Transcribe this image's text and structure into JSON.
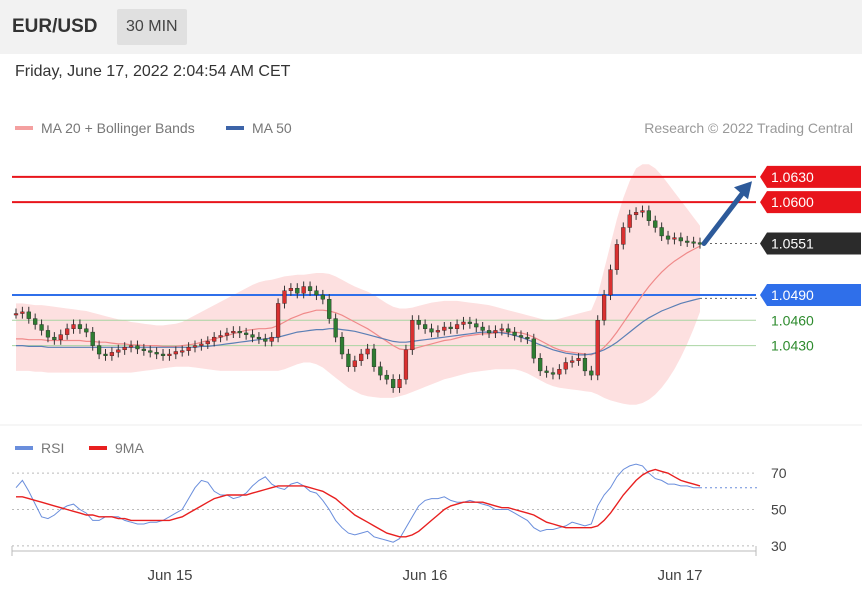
{
  "header": {
    "pair": "EUR/USD",
    "timeframe": "30 MIN"
  },
  "datetime": "Friday, June 17, 2022 2:04:54 AM CET",
  "credit": "Research © 2022 Trading Central",
  "legend": {
    "ma20": "MA 20 + Bollinger Bands",
    "ma50": "MA 50",
    "rsi": "RSI",
    "ma9": "9MA"
  },
  "colors": {
    "resistance": "#e8141b",
    "support_blue": "#2f6fea",
    "support_green": "#a9d4a2",
    "band_fill": "#fde0e0",
    "ma20": "#f08a8a",
    "ma50": "#5b7fb5",
    "arrow": "#2d5a9a",
    "candle_up": "#d93030",
    "candle_down": "#2e7d32",
    "rsi": "#6a8edc",
    "ma9": "#e82020"
  },
  "chart_data": [
    {
      "type": "candlestick",
      "x_ticks": [
        "Jun 15",
        "Jun 16",
        "Jun 17"
      ],
      "ylim": [
        1.0375,
        1.065
      ],
      "levels": [
        {
          "value": 1.063,
          "label": "1.0630",
          "kind": "resistance"
        },
        {
          "value": 1.06,
          "label": "1.0600",
          "kind": "resistance"
        },
        {
          "value": 1.0551,
          "label": "1.0551",
          "kind": "last"
        },
        {
          "value": 1.049,
          "label": "1.0490",
          "kind": "support"
        },
        {
          "value": 1.046,
          "label": "1.0460",
          "kind": "support_green"
        },
        {
          "value": 1.043,
          "label": "1.0430",
          "kind": "support_green"
        }
      ],
      "close_series": [
        1.0468,
        1.047,
        1.0462,
        1.0455,
        1.0448,
        1.044,
        1.0437,
        1.0443,
        1.045,
        1.0455,
        1.045,
        1.0446,
        1.043,
        1.042,
        1.0418,
        1.0422,
        1.0425,
        1.0428,
        1.043,
        1.0426,
        1.0424,
        1.0422,
        1.042,
        1.0418,
        1.042,
        1.0423,
        1.0424,
        1.0428,
        1.043,
        1.0432,
        1.0435,
        1.044,
        1.0442,
        1.0445,
        1.0447,
        1.0445,
        1.0443,
        1.044,
        1.0438,
        1.0435,
        1.044,
        1.048,
        1.0495,
        1.0498,
        1.0492,
        1.05,
        1.0495,
        1.049,
        1.0485,
        1.0462,
        1.044,
        1.042,
        1.0405,
        1.0412,
        1.042,
        1.0426,
        1.0405,
        1.0395,
        1.039,
        1.038,
        1.039,
        1.0425,
        1.046,
        1.0455,
        1.045,
        1.0446,
        1.0448,
        1.0452,
        1.045,
        1.0455,
        1.0458,
        1.0456,
        1.0452,
        1.0448,
        1.0445,
        1.0448,
        1.045,
        1.0446,
        1.0442,
        1.044,
        1.0438,
        1.0415,
        1.04,
        1.0398,
        1.0396,
        1.0402,
        1.041,
        1.0412,
        1.0415,
        1.04,
        1.0395,
        1.046,
        1.049,
        1.052,
        1.055,
        1.057,
        1.0585,
        1.0588,
        1.059,
        1.0578,
        1.057,
        1.056,
        1.0556,
        1.0558,
        1.0554,
        1.0553,
        1.0552,
        1.0551
      ],
      "ma20": [
        1.0438,
        1.0438,
        1.0437,
        1.0437,
        1.0437,
        1.0436,
        1.0436,
        1.0436,
        1.0436,
        1.0436,
        1.0436,
        1.0435,
        1.0435,
        1.0434,
        1.0434,
        1.0433,
        1.0432,
        1.0432,
        1.0431,
        1.0431,
        1.043,
        1.043,
        1.043,
        1.0429,
        1.0429,
        1.0429,
        1.043,
        1.0431,
        1.0432,
        1.0434,
        1.0436,
        1.0438,
        1.044,
        1.0442,
        1.0444,
        1.0446,
        1.0448,
        1.0449,
        1.045,
        1.045,
        1.0451,
        1.0454,
        1.0458,
        1.0462,
        1.0465,
        1.0468,
        1.047,
        1.0472,
        1.0472,
        1.0471,
        1.0469,
        1.0466,
        1.0462,
        1.0458,
        1.0454,
        1.045,
        1.0445,
        1.044,
        1.0435,
        1.043,
        1.0426,
        1.0425,
        1.0426,
        1.0428,
        1.043,
        1.0432,
        1.0434,
        1.0436,
        1.0437,
        1.0439,
        1.0441,
        1.0442,
        1.0443,
        1.0444,
        1.0444,
        1.0445,
        1.0446,
        1.0446,
        1.0446,
        1.0445,
        1.0443,
        1.044,
        1.0436,
        1.0432,
        1.0428,
        1.0425,
        1.0423,
        1.0422,
        1.0421,
        1.042,
        1.0419,
        1.0422,
        1.0428,
        1.0436,
        1.0446,
        1.0457,
        1.0468,
        1.0479,
        1.049,
        1.05,
        1.0509,
        1.0517,
        1.0524,
        1.053,
        1.0535,
        1.054,
        1.0544,
        1.0548
      ],
      "bb_upper": [
        1.048,
        1.048,
        1.0479,
        1.0478,
        1.0478,
        1.0477,
        1.0476,
        1.0475,
        1.0474,
        1.0473,
        1.0472,
        1.0471,
        1.0469,
        1.0467,
        1.0465,
        1.0463,
        1.0461,
        1.046,
        1.0458,
        1.0457,
        1.0456,
        1.0455,
        1.0454,
        1.0454,
        1.0455,
        1.0456,
        1.0458,
        1.0462,
        1.0466,
        1.047,
        1.0474,
        1.0478,
        1.0482,
        1.0486,
        1.049,
        1.0494,
        1.0498,
        1.0502,
        1.0505,
        1.0507,
        1.0508,
        1.051,
        1.0512,
        1.0513,
        1.0514,
        1.0514,
        1.0515,
        1.0516,
        1.0516,
        1.0515,
        1.0512,
        1.0508,
        1.0504,
        1.05,
        1.0497,
        1.0494,
        1.049,
        1.0485,
        1.048,
        1.0476,
        1.0474,
        1.0474,
        1.0475,
        1.0477,
        1.0479,
        1.0481,
        1.0482,
        1.0483,
        1.0483,
        1.0483,
        1.0482,
        1.0481,
        1.048,
        1.0479,
        1.0478,
        1.0476,
        1.0474,
        1.0472,
        1.047,
        1.0468,
        1.0466,
        1.0464,
        1.0462,
        1.046,
        1.046,
        1.0462,
        1.0464,
        1.0466,
        1.0468,
        1.047,
        1.0472,
        1.049,
        1.052,
        1.055,
        1.058,
        1.0605,
        1.0625,
        1.064,
        1.0645,
        1.0645,
        1.064,
        1.0632,
        1.0622,
        1.0612,
        1.0602,
        1.0592,
        1.0582,
        1.0572
      ],
      "bb_lower": [
        1.04,
        1.04,
        1.04,
        1.0399,
        1.0399,
        1.0398,
        1.0398,
        1.0398,
        1.0398,
        1.0398,
        1.0398,
        1.0398,
        1.0398,
        1.0398,
        1.0398,
        1.0398,
        1.0398,
        1.0398,
        1.0398,
        1.0399,
        1.04,
        1.0401,
        1.0402,
        1.0403,
        1.0404,
        1.0405,
        1.0405,
        1.0405,
        1.0404,
        1.0403,
        1.0402,
        1.0401,
        1.04,
        1.04,
        1.04,
        1.04,
        1.04,
        1.04,
        1.04,
        1.04,
        1.04,
        1.04,
        1.0402,
        1.0405,
        1.0408,
        1.041,
        1.041,
        1.0408,
        1.0404,
        1.0398,
        1.0392,
        1.0386,
        1.038,
        1.0376,
        1.0372,
        1.037,
        1.0369,
        1.0368,
        1.0368,
        1.0368,
        1.037,
        1.0372,
        1.0375,
        1.0378,
        1.0381,
        1.0384,
        1.0387,
        1.039,
        1.0392,
        1.0394,
        1.0396,
        1.0398,
        1.0399,
        1.04,
        1.0401,
        1.0402,
        1.0402,
        1.0402,
        1.0402,
        1.04,
        1.0397,
        1.0393,
        1.0389,
        1.0385,
        1.0382,
        1.038,
        1.0379,
        1.0378,
        1.0377,
        1.0376,
        1.0375,
        1.0372,
        1.0368,
        1.0365,
        1.0363,
        1.0361,
        1.036,
        1.036,
        1.0362,
        1.0366,
        1.0372,
        1.038,
        1.039,
        1.0402,
        1.0416,
        1.0432,
        1.045,
        1.047
      ],
      "ma50": [
        1.043,
        1.043,
        1.0429,
        1.0429,
        1.0429,
        1.0428,
        1.0428,
        1.0428,
        1.0428,
        1.0428,
        1.0428,
        1.0428,
        1.0428,
        1.0428,
        1.0428,
        1.0428,
        1.0428,
        1.0428,
        1.0428,
        1.0428,
        1.0428,
        1.0428,
        1.0428,
        1.0428,
        1.0428,
        1.0428,
        1.0428,
        1.0428,
        1.0428,
        1.0429,
        1.0429,
        1.043,
        1.0431,
        1.0432,
        1.0433,
        1.0434,
        1.0435,
        1.0436,
        1.0437,
        1.0438,
        1.0439,
        1.044,
        1.0442,
        1.0444,
        1.0446,
        1.0447,
        1.0448,
        1.0449,
        1.0449,
        1.045,
        1.045,
        1.0449,
        1.0448,
        1.0447,
        1.0445,
        1.0443,
        1.0441,
        1.0439,
        1.0437,
        1.0435,
        1.0434,
        1.0434,
        1.0435,
        1.0436,
        1.0437,
        1.0438,
        1.0439,
        1.044,
        1.0441,
        1.0442,
        1.0443,
        1.0444,
        1.0445,
        1.0446,
        1.0446,
        1.0446,
        1.0445,
        1.0444,
        1.0442,
        1.044,
        1.0437,
        1.0434,
        1.0431,
        1.0428,
        1.0425,
        1.0423,
        1.0421,
        1.042,
        1.0419,
        1.0419,
        1.042,
        1.0422,
        1.0425,
        1.0429,
        1.0434,
        1.044,
        1.0446,
        1.0452,
        1.0458,
        1.0463,
        1.0467,
        1.0471,
        1.0474,
        1.0477,
        1.048,
        1.0482,
        1.0484,
        1.0486
      ]
    },
    {
      "type": "line",
      "x_ticks": [
        "Jun 15",
        "Jun 16",
        "Jun 17"
      ],
      "ylim": [
        20,
        80
      ],
      "y_ticks": [
        "70",
        "50",
        "30"
      ],
      "series": [
        {
          "name": "RSI",
          "values": [
            62,
            66,
            60,
            53,
            46,
            45,
            47,
            50,
            52,
            53,
            50,
            48,
            44,
            44,
            46,
            46,
            46,
            44,
            43,
            42,
            42,
            43,
            43,
            44,
            46,
            48,
            50,
            56,
            62,
            66,
            65,
            60,
            58,
            58,
            56,
            57,
            59,
            63,
            66,
            68,
            64,
            62,
            61,
            64,
            65,
            63,
            60,
            59,
            55,
            50,
            44,
            40,
            37,
            36,
            37,
            38,
            35,
            34,
            33,
            32,
            34,
            40,
            46,
            52,
            55,
            56,
            56,
            57,
            55,
            54,
            54,
            55,
            54,
            53,
            52,
            50,
            50,
            50,
            48,
            46,
            44,
            40,
            38,
            39,
            39,
            40,
            41,
            43,
            42,
            41,
            42,
            52,
            58,
            62,
            68,
            72,
            74,
            75,
            74,
            70,
            67,
            66,
            64,
            64,
            63,
            63,
            62,
            62
          ]
        },
        {
          "name": "9MA",
          "values": [
            57,
            57,
            56,
            55,
            54,
            53,
            52,
            51,
            50,
            49,
            48,
            47,
            47,
            46,
            46,
            46,
            45,
            45,
            44,
            44,
            44,
            44,
            44,
            44,
            44,
            45,
            46,
            48,
            50,
            52,
            54,
            56,
            57,
            58,
            58,
            58,
            58,
            59,
            60,
            61,
            62,
            63,
            63,
            63,
            63,
            63,
            62,
            61,
            60,
            58,
            56,
            53,
            50,
            47,
            45,
            43,
            41,
            39,
            37,
            36,
            35,
            35,
            36,
            38,
            41,
            44,
            47,
            50,
            52,
            53,
            54,
            54,
            54,
            54,
            53,
            52,
            51,
            51,
            50,
            49,
            48,
            47,
            45,
            43,
            42,
            41,
            40,
            40,
            40,
            40,
            40,
            41,
            44,
            48,
            53,
            58,
            62,
            66,
            69,
            71,
            72,
            71,
            70,
            68,
            66,
            65,
            64,
            63
          ]
        }
      ]
    }
  ]
}
